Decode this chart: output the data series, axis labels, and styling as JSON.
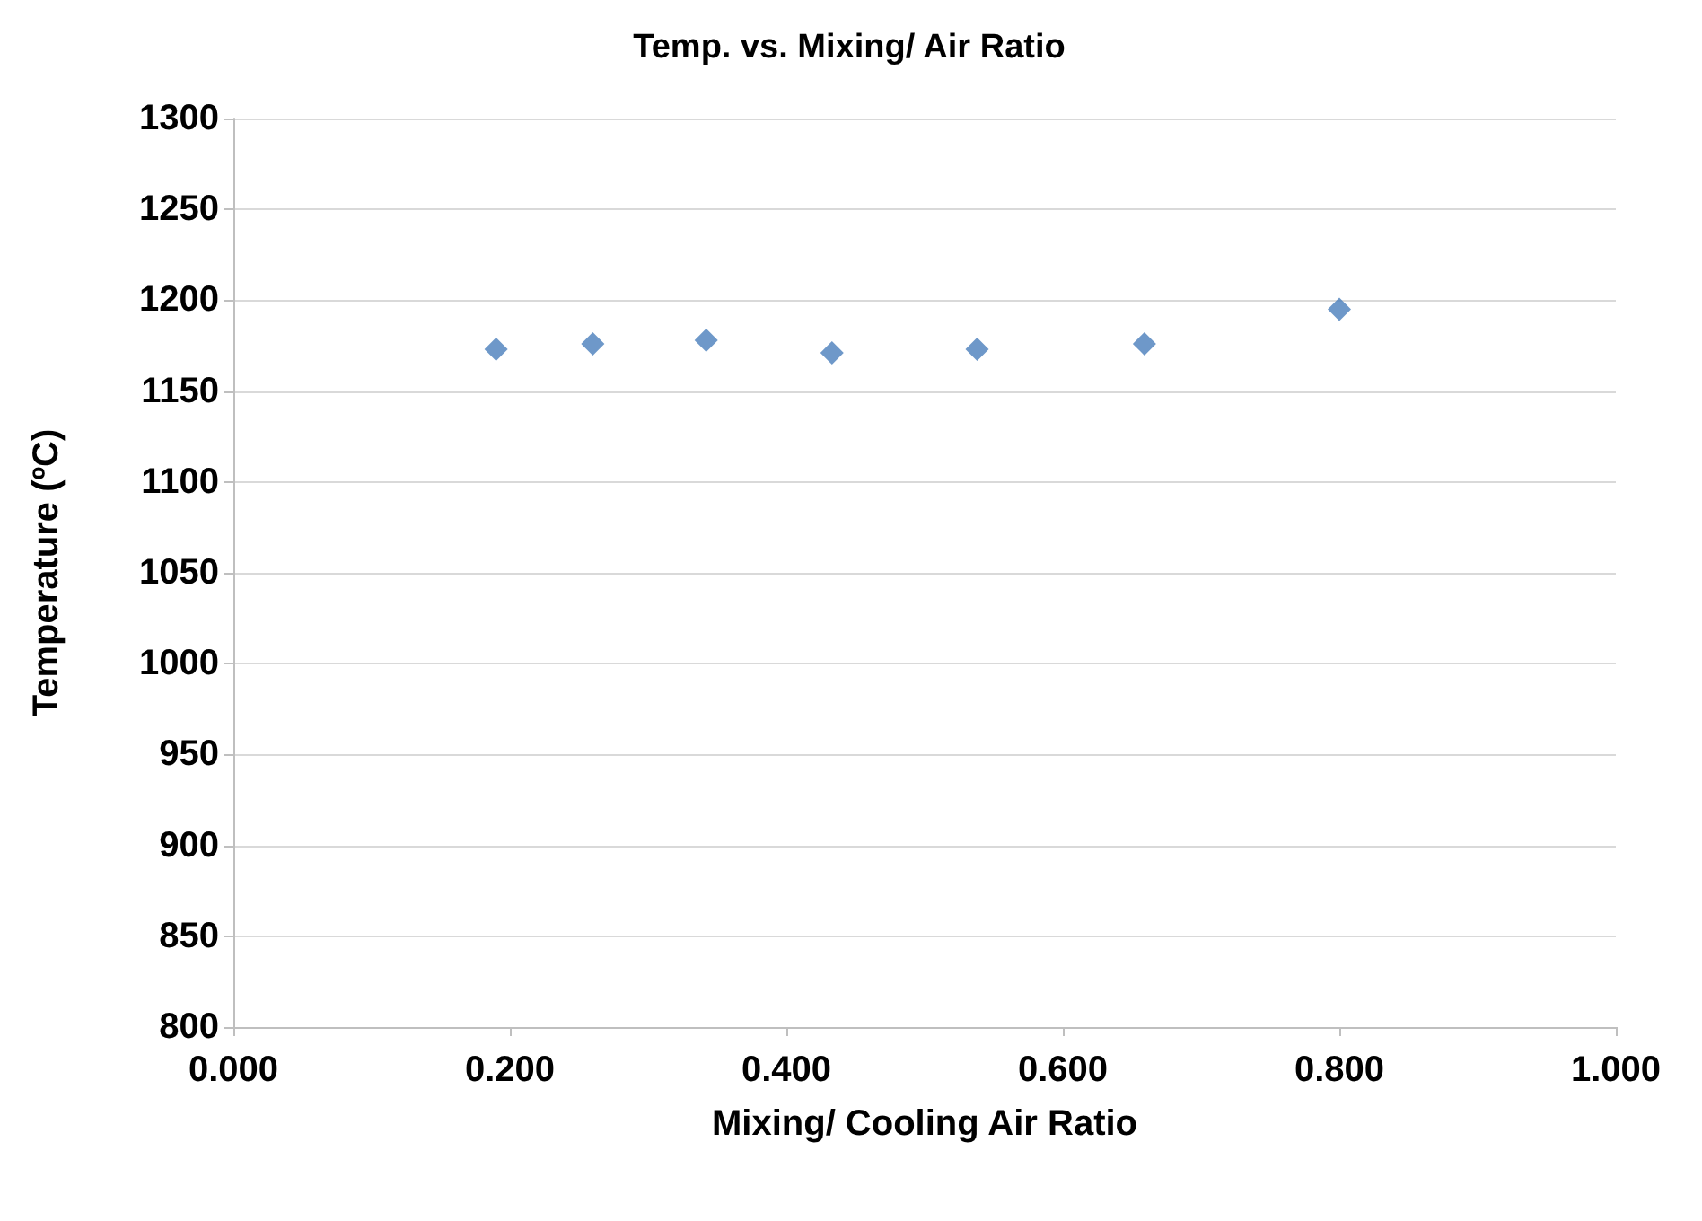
{
  "chart_data": {
    "type": "scatter",
    "title": "Temp. vs. Mixing/ Air Ratio",
    "xlabel": "Mixing/ Cooling Air Ratio",
    "ylabel": "Temperature (ºC)",
    "x": [
      0.19,
      0.26,
      0.342,
      0.433,
      0.538,
      0.659,
      0.8
    ],
    "series": [
      {
        "color": "#4a7ebb",
        "values": [
          1173,
          1176,
          1178,
          1171,
          1173,
          1176,
          1195
        ]
      }
    ],
    "xlim": [
      0,
      1
    ],
    "xticks": [
      {
        "value": 0,
        "label": "0.000"
      },
      {
        "value": 0.2,
        "label": "0.200"
      },
      {
        "value": 0.4,
        "label": "0.400"
      },
      {
        "value": 0.6,
        "label": "0.600"
      },
      {
        "value": 0.8,
        "label": "0.800"
      },
      {
        "value": 1,
        "label": "1.000"
      }
    ],
    "ylim": [
      800,
      1300
    ],
    "yticks": [
      800,
      850,
      900,
      950,
      1000,
      1050,
      1100,
      1150,
      1200,
      1250,
      1300
    ],
    "grid": "y",
    "marker": "diamond"
  }
}
